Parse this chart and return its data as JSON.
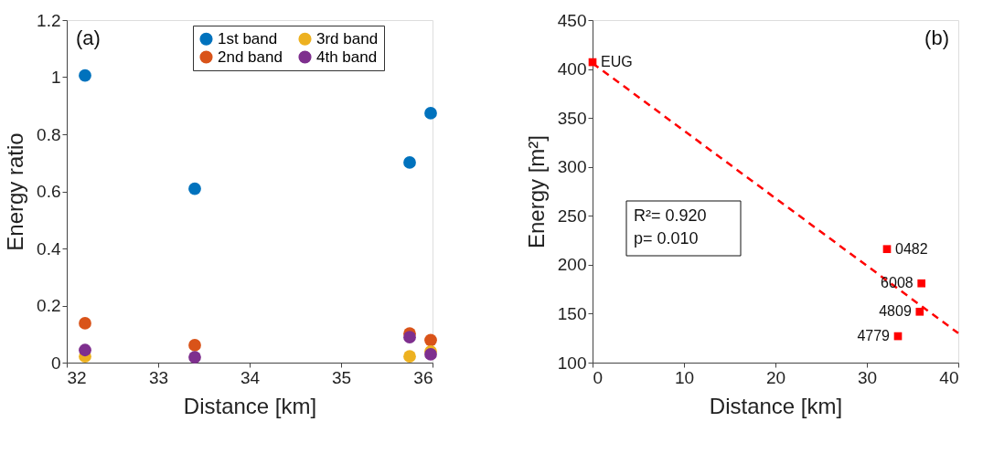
{
  "chart_data": [
    {
      "type": "scatter",
      "title": "(a)",
      "xlabel": "Distance [km]",
      "ylabel": "Energy ratio",
      "x": [
        32.2,
        33.4,
        35.75,
        35.98
      ],
      "marker": "circle",
      "legend": "top right",
      "series": [
        {
          "name": "1st band",
          "color": "#0072bd",
          "values": [
            1.006,
            0.609,
            0.701,
            0.874
          ]
        },
        {
          "name": "2nd band",
          "color": "#d95319",
          "values": [
            0.138,
            0.061,
            0.102,
            0.079
          ]
        },
        {
          "name": "3rd band",
          "color": "#edb120",
          "values": [
            0.022,
            null,
            0.022,
            0.039
          ]
        },
        {
          "name": "4th band",
          "color": "#7e2f8e",
          "values": [
            0.044,
            0.019,
            0.089,
            0.029
          ]
        }
      ],
      "xlim": [
        32,
        36
      ],
      "xticks": [
        32,
        33,
        34,
        35,
        36
      ],
      "ylim": [
        0,
        1.2
      ],
      "yticks": [
        0,
        0.2,
        0.4,
        0.6,
        0.8,
        1,
        1.2
      ]
    },
    {
      "type": "scatter",
      "title": "(b)",
      "xlabel": "Distance [km]",
      "ylabel": "Energy [m²]",
      "marker": "square",
      "series": [
        {
          "color": "#ff0000",
          "x": [
            0,
            32.2,
            35.97,
            35.78,
            33.4
          ],
          "values": [
            407,
            216,
            181,
            152,
            127
          ]
        },
        {
          "type": "line",
          "color": "#ff0000",
          "line_style": "dashed",
          "marker": "none",
          "x": [
            0,
            40
          ],
          "values": [
            406,
            130
          ]
        }
      ],
      "annotations": [
        {
          "text": "EUG",
          "x": 0,
          "y": 407
        },
        {
          "text": "0482",
          "x": 32.2,
          "y": 216
        },
        {
          "text": "6008",
          "x": 35.97,
          "y": 181
        },
        {
          "text": "4809",
          "x": 35.78,
          "y": 152
        },
        {
          "text": "4779",
          "x": 33.4,
          "y": 127
        },
        "R²= 0.920",
        "p= 0.010"
      ],
      "xlim": [
        0,
        40
      ],
      "xticks": [
        0,
        10,
        20,
        30,
        40
      ],
      "ylim": [
        100,
        450
      ],
      "yticks": [
        100,
        150,
        200,
        250,
        300,
        350,
        400,
        450
      ]
    }
  ]
}
